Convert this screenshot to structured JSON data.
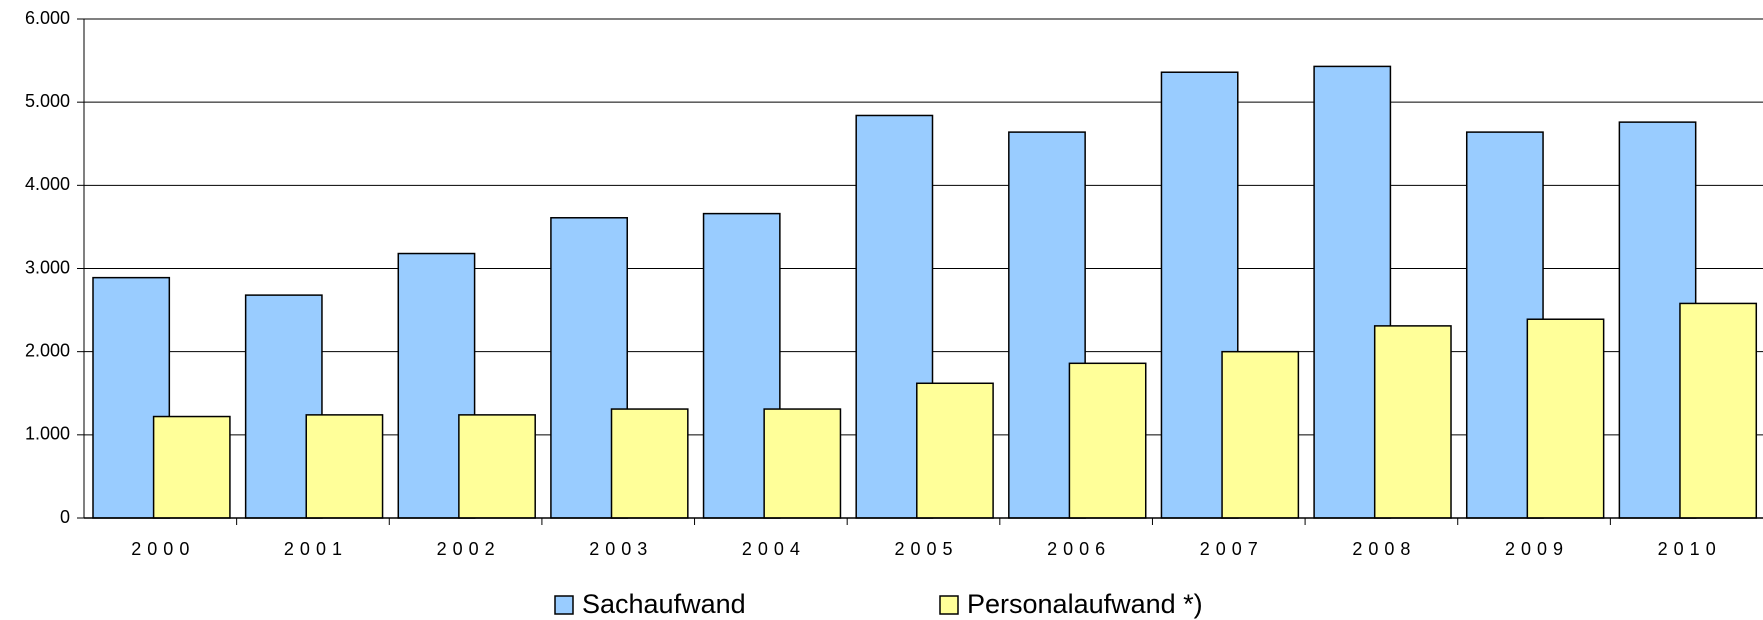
{
  "chart_data": {
    "type": "bar",
    "categories": [
      "2000",
      "2001",
      "2002",
      "2003",
      "2004",
      "2005",
      "2006",
      "2007",
      "2008",
      "2009",
      "2010"
    ],
    "series": [
      {
        "name": "Sachaufwand",
        "color": "#99ccff",
        "values": [
          2890,
          2680,
          3180,
          3610,
          3660,
          4840,
          4640,
          5360,
          5430,
          4640,
          4760
        ]
      },
      {
        "name": "Personalaufwand *)",
        "color": "#ffff99",
        "values": [
          1220,
          1240,
          1240,
          1310,
          1310,
          1620,
          1860,
          2000,
          2310,
          2390,
          2580
        ]
      }
    ],
    "ylim": [
      0,
      6000
    ],
    "yticks": [
      0,
      {
        "value": 1000,
        "label": "1.000"
      },
      {
        "value": 2000,
        "label": "2.000"
      },
      {
        "value": 3000,
        "label": "3.000"
      },
      {
        "value": 4000,
        "label": "4.000"
      },
      {
        "value": 5000,
        "label": "5.000"
      },
      {
        "value": 6000,
        "label": "6.000"
      }
    ],
    "grid": true,
    "legend": "bottom"
  }
}
